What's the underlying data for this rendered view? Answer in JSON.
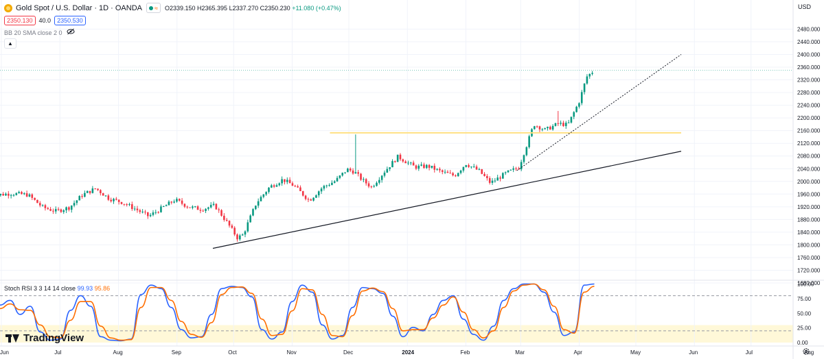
{
  "header": {
    "symbol_title": "Gold Spot / U.S. Dollar · 1D · OANDA",
    "ohlc_open": "O2339.150",
    "ohlc_high": "H2365.395",
    "ohlc_low": "L2337.270",
    "ohlc_close": "C2350.230",
    "ohlc_change": "+11.080 (+0.47%)",
    "bid_price": "2350.130",
    "spread": "40.0",
    "ask_price": "2350.530",
    "indicator_label": "BB 20 SMA close 2 0",
    "pct_icon": "≈",
    "currency": "USD"
  },
  "stoch_legend": {
    "name": "Stoch RSI 3 3 14 14 close",
    "k_value": "99.93",
    "d_value": "95.86"
  },
  "branding": {
    "logo_text": "TradingView"
  },
  "colors": {
    "up": "#089981",
    "down": "#f23645",
    "stoch_k": "#2962ff",
    "stoch_d": "#ff6d00",
    "resistance": "#ffe082",
    "band_fill": "#fff8d8"
  },
  "chart_data": [
    {
      "type": "candlestick",
      "title": "Gold Spot / U.S. Dollar · 1D · OANDA",
      "x_axis_labels": [
        "Jun",
        "Jul",
        "Aug",
        "Sep",
        "Oct",
        "Nov",
        "Dec",
        "2024",
        "Feb",
        "Mar",
        "Apr",
        "May",
        "Jun",
        "Jul",
        "Aug"
      ],
      "y_ticks": [
        1680,
        1720,
        1760,
        1800,
        1840,
        1880,
        1920,
        1960,
        2000,
        2040,
        2080,
        2120,
        2160,
        2200,
        2240,
        2280,
        2320,
        2360,
        2400,
        2440,
        2480
      ],
      "ylim": [
        1642,
        2500
      ],
      "grid": true,
      "last_price": 2350.23,
      "close_path": [
        {
          "date": "2023-05-25",
          "close": 1955
        },
        {
          "date": "2023-06-05",
          "close": 1962
        },
        {
          "date": "2023-06-14",
          "close": 1958
        },
        {
          "date": "2023-06-22",
          "close": 1918
        },
        {
          "date": "2023-06-29",
          "close": 1906
        },
        {
          "date": "2023-07-06",
          "close": 1918
        },
        {
          "date": "2023-07-13",
          "close": 1958
        },
        {
          "date": "2023-07-20",
          "close": 1978
        },
        {
          "date": "2023-07-27",
          "close": 1946
        },
        {
          "date": "2023-08-03",
          "close": 1934
        },
        {
          "date": "2023-08-10",
          "close": 1913
        },
        {
          "date": "2023-08-17",
          "close": 1890
        },
        {
          "date": "2023-08-24",
          "close": 1916
        },
        {
          "date": "2023-08-31",
          "close": 1942
        },
        {
          "date": "2023-09-07",
          "close": 1920
        },
        {
          "date": "2023-09-14",
          "close": 1912
        },
        {
          "date": "2023-09-21",
          "close": 1924
        },
        {
          "date": "2023-09-27",
          "close": 1875
        },
        {
          "date": "2023-10-03",
          "close": 1822
        },
        {
          "date": "2023-10-06",
          "close": 1832
        },
        {
          "date": "2023-10-13",
          "close": 1932
        },
        {
          "date": "2023-10-20",
          "close": 1982
        },
        {
          "date": "2023-10-27",
          "close": 2006
        },
        {
          "date": "2023-11-02",
          "close": 1986
        },
        {
          "date": "2023-11-10",
          "close": 1940
        },
        {
          "date": "2023-11-17",
          "close": 1981
        },
        {
          "date": "2023-11-24",
          "close": 2002
        },
        {
          "date": "2023-11-30",
          "close": 2038
        },
        {
          "date": "2023-12-04",
          "close": 2030
        },
        {
          "date": "2023-12-08",
          "close": 2005
        },
        {
          "date": "2023-12-13",
          "close": 1982
        },
        {
          "date": "2023-12-20",
          "close": 2032
        },
        {
          "date": "2023-12-27",
          "close": 2078
        },
        {
          "date": "2024-01-05",
          "close": 2045
        },
        {
          "date": "2024-01-12",
          "close": 2048
        },
        {
          "date": "2024-01-19",
          "close": 2030
        },
        {
          "date": "2024-01-26",
          "close": 2018
        },
        {
          "date": "2024-02-01",
          "close": 2056
        },
        {
          "date": "2024-02-08",
          "close": 2033
        },
        {
          "date": "2024-02-14",
          "close": 1995
        },
        {
          "date": "2024-02-22",
          "close": 2025
        },
        {
          "date": "2024-02-29",
          "close": 2044
        },
        {
          "date": "2024-03-05",
          "close": 2128
        },
        {
          "date": "2024-03-08",
          "close": 2180
        },
        {
          "date": "2024-03-14",
          "close": 2162
        },
        {
          "date": "2024-03-21",
          "close": 2182
        },
        {
          "date": "2024-03-26",
          "close": 2178
        },
        {
          "date": "2024-04-01",
          "close": 2252
        },
        {
          "date": "2024-04-05",
          "close": 2330
        },
        {
          "date": "2024-04-09",
          "close": 2350
        }
      ],
      "annotations": {
        "ascending_trendline": {
          "from": {
            "date": "2023-09-20",
            "price": 1789
          },
          "to": {
            "date": "2024-05-25",
            "price": 2095
          }
        },
        "steep_trendline": {
          "from": {
            "date": "2024-02-28",
            "price": 2034
          },
          "to": {
            "date": "2024-05-25",
            "price": 2400
          }
        },
        "resistance_line": {
          "from": {
            "date": "2023-11-21",
            "price": 2153
          },
          "to": {
            "date": "2024-05-25",
            "price": 2153
          }
        }
      }
    },
    {
      "type": "line",
      "title": "Stoch RSI 3 3 14 14 close",
      "y_ticks": [
        0,
        25,
        50,
        75,
        100
      ],
      "ylim": [
        -2,
        103
      ],
      "band": [
        20,
        80
      ],
      "series": [
        {
          "name": "K",
          "values": [
            64,
            72,
            48,
            62,
            18,
            4,
            6,
            55,
            80,
            62,
            10,
            4,
            3,
            6,
            82,
            98,
            92,
            60,
            22,
            8,
            10,
            48,
            92,
            96,
            94,
            78,
            22,
            6,
            18,
            70,
            98,
            86,
            30,
            6,
            12,
            60,
            94,
            92,
            84,
            45,
            10,
            26,
            20,
            48,
            72,
            80,
            40,
            14,
            4,
            28,
            72,
            92,
            100,
            100,
            86,
            52,
            12,
            18,
            98,
            100
          ]
        },
        {
          "name": "D",
          "values": [
            58,
            66,
            56,
            55,
            30,
            10,
            8,
            38,
            70,
            70,
            28,
            8,
            4,
            5,
            60,
            94,
            94,
            72,
            36,
            14,
            9,
            34,
            82,
            94,
            95,
            84,
            40,
            12,
            14,
            54,
            92,
            90,
            48,
            12,
            10,
            46,
            88,
            93,
            87,
            58,
            20,
            22,
            22,
            42,
            64,
            78,
            52,
            22,
            8,
            20,
            60,
            88,
            98,
            100,
            90,
            62,
            22,
            16,
            86,
            96
          ]
        }
      ]
    }
  ]
}
